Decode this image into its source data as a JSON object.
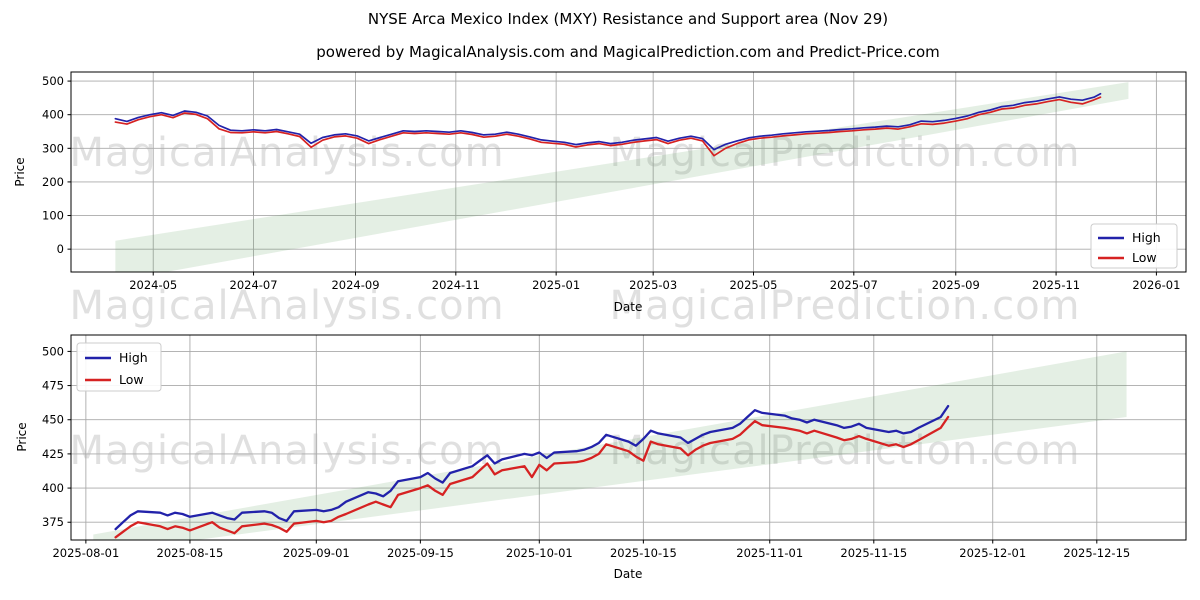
{
  "title": "NYSE Arca Mexico Index (MXY) Resistance and Support area (Nov 29)",
  "subtitle": "powered by MagicalAnalysis.com and MagicalPrediction.com and Predict-Price.com",
  "watermarks": {
    "left": "MagicalAnalysis.com",
    "right": "MagicalPrediction.com"
  },
  "legend": {
    "high_label": "High",
    "low_label": "Low"
  },
  "colors": {
    "high": "#2222aa",
    "low": "#d62222",
    "band": "#5a9a5a",
    "grid": "#aaaaaa",
    "watermark": "#e0e0e0",
    "spine": "#000000"
  },
  "chart_data": [
    {
      "type": "line",
      "title": "",
      "xlabel": "Date",
      "ylabel": "Price",
      "grid": true,
      "legend_position": "center right",
      "x_range": [
        "2024-03-12",
        "2026-01-19"
      ],
      "y_range": [
        -68,
        527
      ],
      "x_ticks": [
        "2024-05",
        "2024-07",
        "2024-09",
        "2024-11",
        "2025-01",
        "2025-03",
        "2025-05",
        "2025-07",
        "2025-09",
        "2025-11",
        "2026-01"
      ],
      "y_ticks": [
        0,
        100,
        200,
        300,
        400,
        500
      ],
      "band": {
        "label": "support-resistance-area",
        "points": [
          [
            "2024-04-08",
            -95
          ],
          [
            "2024-04-08",
            25
          ],
          [
            "2025-12-15",
            497
          ],
          [
            "2025-12-15",
            447
          ]
        ]
      },
      "series": [
        {
          "name": "High",
          "dates": [
            "2024-04-08",
            "2024-04-15",
            "2024-04-22",
            "2024-04-29",
            "2024-05-06",
            "2024-05-13",
            "2024-05-20",
            "2024-05-27",
            "2024-06-03",
            "2024-06-10",
            "2024-06-17",
            "2024-06-24",
            "2024-07-01",
            "2024-07-08",
            "2024-07-15",
            "2024-07-22",
            "2024-07-29",
            "2024-08-05",
            "2024-08-12",
            "2024-08-19",
            "2024-08-26",
            "2024-09-02",
            "2024-09-09",
            "2024-09-16",
            "2024-09-23",
            "2024-09-30",
            "2024-10-07",
            "2024-10-14",
            "2024-10-21",
            "2024-10-28",
            "2024-11-04",
            "2024-11-11",
            "2024-11-18",
            "2024-11-25",
            "2024-12-02",
            "2024-12-09",
            "2024-12-16",
            "2024-12-23",
            "2024-12-30",
            "2025-01-06",
            "2025-01-13",
            "2025-01-20",
            "2025-01-27",
            "2025-02-03",
            "2025-02-10",
            "2025-02-17",
            "2025-02-24",
            "2025-03-03",
            "2025-03-10",
            "2025-03-17",
            "2025-03-24",
            "2025-03-31",
            "2025-04-07",
            "2025-04-14",
            "2025-04-21",
            "2025-04-28",
            "2025-05-05",
            "2025-05-12",
            "2025-05-19",
            "2025-05-26",
            "2025-06-02",
            "2025-06-09",
            "2025-06-16",
            "2025-06-23",
            "2025-06-30",
            "2025-07-07",
            "2025-07-14",
            "2025-07-21",
            "2025-07-28",
            "2025-08-04",
            "2025-08-11",
            "2025-08-18",
            "2025-08-25",
            "2025-09-01",
            "2025-09-08",
            "2025-09-15",
            "2025-09-22",
            "2025-09-29",
            "2025-10-06",
            "2025-10-13",
            "2025-10-20",
            "2025-10-27",
            "2025-11-03",
            "2025-11-10",
            "2025-11-17",
            "2025-11-24",
            "2025-11-28"
          ],
          "values": [
            388,
            380,
            392,
            400,
            406,
            398,
            411,
            407,
            396,
            368,
            354,
            352,
            355,
            352,
            356,
            349,
            342,
            315,
            332,
            340,
            343,
            337,
            322,
            332,
            342,
            352,
            350,
            352,
            350,
            348,
            352,
            347,
            340,
            342,
            348,
            342,
            334,
            325,
            321,
            318,
            311,
            316,
            320,
            314,
            318,
            324,
            328,
            332,
            321,
            330,
            336,
            329,
            296,
            312,
            322,
            331,
            336,
            339,
            343,
            346,
            349,
            351,
            353,
            356,
            358,
            361,
            363,
            366,
            364,
            370,
            381,
            379,
            383,
            389,
            396,
            407,
            414,
            424,
            428,
            436,
            440,
            447,
            453,
            446,
            443,
            452,
            462
          ]
        },
        {
          "name": "Low",
          "dates": [
            "2024-04-08",
            "2024-04-15",
            "2024-04-22",
            "2024-04-29",
            "2024-05-06",
            "2024-05-13",
            "2024-05-20",
            "2024-05-27",
            "2024-06-03",
            "2024-06-10",
            "2024-06-17",
            "2024-06-24",
            "2024-07-01",
            "2024-07-08",
            "2024-07-15",
            "2024-07-22",
            "2024-07-29",
            "2024-08-05",
            "2024-08-12",
            "2024-08-19",
            "2024-08-26",
            "2024-09-02",
            "2024-09-09",
            "2024-09-16",
            "2024-09-23",
            "2024-09-30",
            "2024-10-07",
            "2024-10-14",
            "2024-10-21",
            "2024-10-28",
            "2024-11-04",
            "2024-11-11",
            "2024-11-18",
            "2024-11-25",
            "2024-12-02",
            "2024-12-09",
            "2024-12-16",
            "2024-12-23",
            "2024-12-30",
            "2025-01-06",
            "2025-01-13",
            "2025-01-20",
            "2025-01-27",
            "2025-02-03",
            "2025-02-10",
            "2025-02-17",
            "2025-02-24",
            "2025-03-03",
            "2025-03-10",
            "2025-03-17",
            "2025-03-24",
            "2025-03-31",
            "2025-04-07",
            "2025-04-14",
            "2025-04-21",
            "2025-04-28",
            "2025-05-05",
            "2025-05-12",
            "2025-05-19",
            "2025-05-26",
            "2025-06-02",
            "2025-06-09",
            "2025-06-16",
            "2025-06-23",
            "2025-06-30",
            "2025-07-07",
            "2025-07-14",
            "2025-07-21",
            "2025-07-28",
            "2025-08-04",
            "2025-08-11",
            "2025-08-18",
            "2025-08-25",
            "2025-09-01",
            "2025-09-08",
            "2025-09-15",
            "2025-09-22",
            "2025-09-29",
            "2025-10-06",
            "2025-10-13",
            "2025-10-20",
            "2025-10-27",
            "2025-11-03",
            "2025-11-10",
            "2025-11-17",
            "2025-11-24",
            "2025-11-28"
          ],
          "values": [
            378,
            372,
            385,
            394,
            400,
            391,
            405,
            401,
            388,
            358,
            347,
            346,
            349,
            346,
            350,
            343,
            335,
            303,
            324,
            334,
            337,
            330,
            314,
            326,
            336,
            346,
            344,
            346,
            344,
            342,
            346,
            341,
            333,
            336,
            342,
            336,
            328,
            318,
            315,
            312,
            304,
            310,
            314,
            308,
            312,
            318,
            322,
            326,
            314,
            324,
            330,
            322,
            278,
            300,
            314,
            325,
            330,
            333,
            337,
            340,
            343,
            345,
            347,
            350,
            352,
            355,
            357,
            360,
            357,
            364,
            373,
            371,
            375,
            381,
            388,
            400,
            407,
            417,
            420,
            428,
            432,
            439,
            445,
            437,
            432,
            444,
            452
          ]
        }
      ]
    },
    {
      "type": "line",
      "title": "",
      "xlabel": "Date",
      "ylabel": "Price",
      "grid": true,
      "legend_position": "upper left",
      "x_range": [
        "2025-07-30",
        "2025-12-27"
      ],
      "y_range": [
        362,
        512
      ],
      "x_ticks": [
        "2025-08-01",
        "2025-08-15",
        "2025-09-01",
        "2025-09-15",
        "2025-10-01",
        "2025-10-15",
        "2025-11-01",
        "2025-11-15",
        "2025-12-01",
        "2025-12-15"
      ],
      "y_ticks": [
        375,
        400,
        425,
        450,
        475,
        500
      ],
      "band": {
        "label": "support-resistance-area",
        "points": [
          [
            "2025-08-02",
            352
          ],
          [
            "2025-08-02",
            366
          ],
          [
            "2025-12-19",
            500
          ],
          [
            "2025-12-19",
            452
          ]
        ]
      },
      "series": [
        {
          "name": "High",
          "dates": [
            "2025-08-05",
            "2025-08-06",
            "2025-08-07",
            "2025-08-08",
            "2025-08-11",
            "2025-08-12",
            "2025-08-13",
            "2025-08-14",
            "2025-08-15",
            "2025-08-18",
            "2025-08-19",
            "2025-08-20",
            "2025-08-21",
            "2025-08-22",
            "2025-08-25",
            "2025-08-26",
            "2025-08-27",
            "2025-08-28",
            "2025-08-29",
            "2025-09-01",
            "2025-09-02",
            "2025-09-03",
            "2025-09-04",
            "2025-09-05",
            "2025-09-08",
            "2025-09-09",
            "2025-09-10",
            "2025-09-11",
            "2025-09-12",
            "2025-09-15",
            "2025-09-16",
            "2025-09-17",
            "2025-09-18",
            "2025-09-19",
            "2025-09-22",
            "2025-09-23",
            "2025-09-24",
            "2025-09-25",
            "2025-09-26",
            "2025-09-29",
            "2025-09-30",
            "2025-10-01",
            "2025-10-02",
            "2025-10-03",
            "2025-10-06",
            "2025-10-07",
            "2025-10-08",
            "2025-10-09",
            "2025-10-10",
            "2025-10-13",
            "2025-10-14",
            "2025-10-15",
            "2025-10-16",
            "2025-10-17",
            "2025-10-20",
            "2025-10-21",
            "2025-10-22",
            "2025-10-23",
            "2025-10-24",
            "2025-10-27",
            "2025-10-28",
            "2025-10-29",
            "2025-10-30",
            "2025-10-31",
            "2025-11-03",
            "2025-11-04",
            "2025-11-05",
            "2025-11-06",
            "2025-11-07",
            "2025-11-10",
            "2025-11-11",
            "2025-11-12",
            "2025-11-13",
            "2025-11-14",
            "2025-11-17",
            "2025-11-18",
            "2025-11-19",
            "2025-11-20",
            "2025-11-21",
            "2025-11-24",
            "2025-11-25"
          ],
          "values": [
            370,
            375,
            380,
            383,
            382,
            380,
            382,
            381,
            379,
            382,
            380,
            378,
            377,
            382,
            383,
            382,
            378,
            376,
            383,
            384,
            383,
            384,
            386,
            390,
            397,
            396,
            394,
            398,
            405,
            408,
            411,
            407,
            404,
            411,
            416,
            420,
            424,
            418,
            421,
            425,
            424,
            426,
            422,
            426,
            427,
            428,
            430,
            433,
            439,
            434,
            431,
            436,
            442,
            440,
            437,
            433,
            436,
            439,
            441,
            444,
            447,
            452,
            457,
            455,
            453,
            451,
            450,
            448,
            450,
            446,
            444,
            445,
            447,
            444,
            441,
            442,
            440,
            441,
            444,
            452,
            460
          ]
        },
        {
          "name": "Low",
          "dates": [
            "2025-08-05",
            "2025-08-06",
            "2025-08-07",
            "2025-08-08",
            "2025-08-11",
            "2025-08-12",
            "2025-08-13",
            "2025-08-14",
            "2025-08-15",
            "2025-08-18",
            "2025-08-19",
            "2025-08-20",
            "2025-08-21",
            "2025-08-22",
            "2025-08-25",
            "2025-08-26",
            "2025-08-27",
            "2025-08-28",
            "2025-08-29",
            "2025-09-01",
            "2025-09-02",
            "2025-09-03",
            "2025-09-04",
            "2025-09-05",
            "2025-09-08",
            "2025-09-09",
            "2025-09-10",
            "2025-09-11",
            "2025-09-12",
            "2025-09-15",
            "2025-09-16",
            "2025-09-17",
            "2025-09-18",
            "2025-09-19",
            "2025-09-22",
            "2025-09-23",
            "2025-09-24",
            "2025-09-25",
            "2025-09-26",
            "2025-09-29",
            "2025-09-30",
            "2025-10-01",
            "2025-10-02",
            "2025-10-03",
            "2025-10-06",
            "2025-10-07",
            "2025-10-08",
            "2025-10-09",
            "2025-10-10",
            "2025-10-13",
            "2025-10-14",
            "2025-10-15",
            "2025-10-16",
            "2025-10-17",
            "2025-10-20",
            "2025-10-21",
            "2025-10-22",
            "2025-10-23",
            "2025-10-24",
            "2025-10-27",
            "2025-10-28",
            "2025-10-29",
            "2025-10-30",
            "2025-10-31",
            "2025-11-03",
            "2025-11-04",
            "2025-11-05",
            "2025-11-06",
            "2025-11-07",
            "2025-11-10",
            "2025-11-11",
            "2025-11-12",
            "2025-11-13",
            "2025-11-14",
            "2025-11-17",
            "2025-11-18",
            "2025-11-19",
            "2025-11-20",
            "2025-11-21",
            "2025-11-24",
            "2025-11-25"
          ],
          "values": [
            364,
            368,
            372,
            375,
            372,
            370,
            372,
            371,
            369,
            375,
            371,
            369,
            367,
            372,
            374,
            373,
            371,
            368,
            374,
            376,
            375,
            376,
            379,
            381,
            388,
            390,
            388,
            386,
            395,
            400,
            402,
            398,
            395,
            403,
            408,
            413,
            418,
            410,
            413,
            416,
            408,
            417,
            413,
            418,
            419,
            420,
            422,
            425,
            432,
            427,
            423,
            420,
            434,
            432,
            429,
            424,
            428,
            431,
            433,
            436,
            439,
            444,
            449,
            446,
            444,
            443,
            442,
            440,
            442,
            437,
            435,
            436,
            438,
            436,
            431,
            432,
            430,
            432,
            435,
            444,
            452
          ]
        }
      ]
    }
  ]
}
